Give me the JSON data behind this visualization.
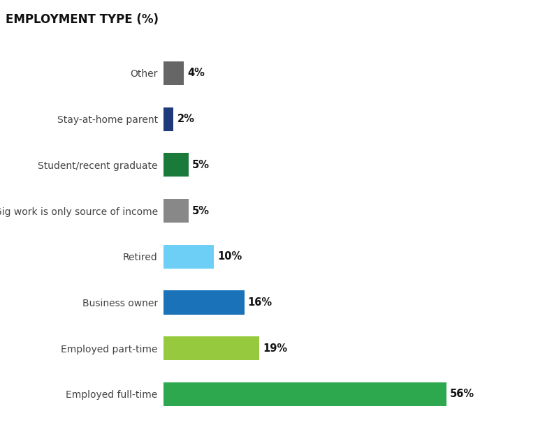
{
  "title": "EMPLOYMENT TYPE (%)",
  "categories": [
    "Other",
    "Stay-at-home parent",
    "Student/recent graduate",
    "Gig work is only source of income",
    "Retired",
    "Business owner",
    "Employed part-time",
    "Employed full-time"
  ],
  "values": [
    4,
    2,
    5,
    5,
    10,
    16,
    19,
    56
  ],
  "colors": [
    "#666666",
    "#1f3a7a",
    "#1a7a3a",
    "#888888",
    "#6ecff6",
    "#1a72b8",
    "#96c93d",
    "#2da84f"
  ],
  "bar_height": 0.52,
  "background_color": "#ffffff",
  "title_fontsize": 12,
  "label_fontsize": 10,
  "value_fontsize": 10.5,
  "title_color": "#111111",
  "label_color": "#444444",
  "value_color": "#111111",
  "xlim": 68
}
